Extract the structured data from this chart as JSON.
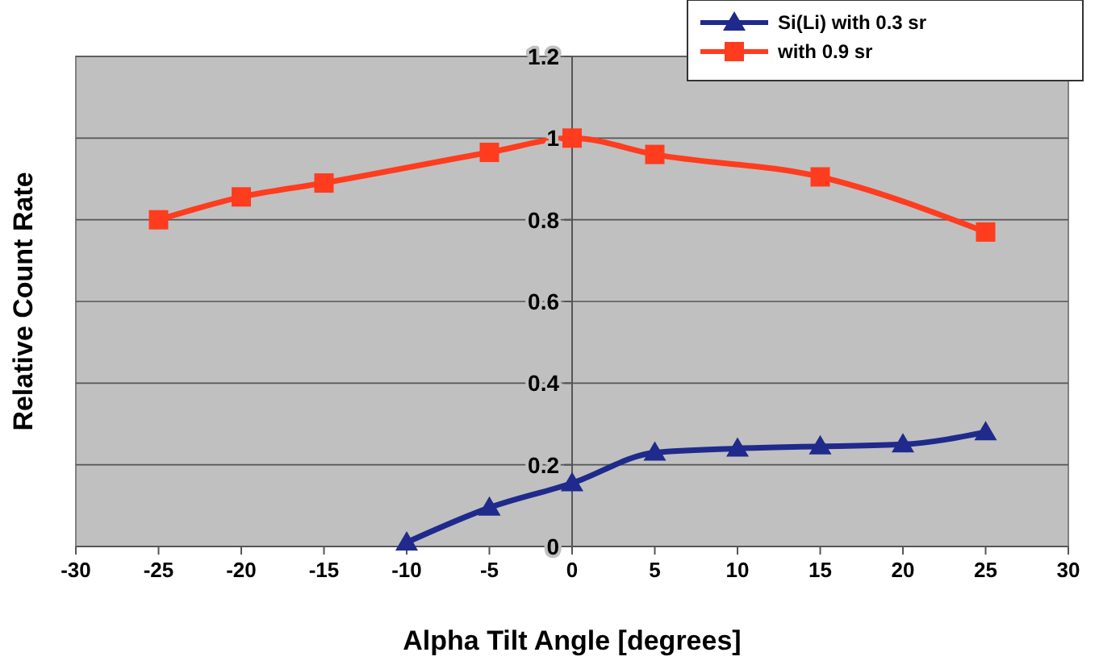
{
  "chart_data": {
    "type": "line",
    "xlabel": "Alpha Tilt Angle [degrees]",
    "ylabel": "Relative Count Rate",
    "xlim": [
      -30,
      30
    ],
    "xticks": [
      -30,
      -25,
      -20,
      -15,
      -10,
      -5,
      0,
      5,
      10,
      15,
      20,
      25,
      30
    ],
    "ylim": [
      0,
      1.2
    ],
    "yticks": [
      0,
      0.2,
      0.4,
      0.6,
      0.8,
      1,
      1.2
    ],
    "grid": "y",
    "legend": "top right",
    "series": [
      {
        "name": "Si(Li) with 0.3 sr",
        "color": "#1f2a8c",
        "marker": "triangle",
        "x": [
          -10,
          -5,
          0,
          5,
          10,
          15,
          20,
          25
        ],
        "values": [
          0.01,
          0.095,
          0.155,
          0.23,
          0.24,
          0.245,
          0.25,
          0.28
        ]
      },
      {
        "name": "with 0.9 sr",
        "color": "#ff3c1e",
        "marker": "square",
        "x": [
          -25,
          -20,
          -15,
          -5,
          0,
          5,
          15,
          25
        ],
        "values": [
          0.8,
          0.856,
          0.89,
          0.965,
          1.0,
          0.96,
          0.905,
          0.77
        ]
      }
    ]
  }
}
